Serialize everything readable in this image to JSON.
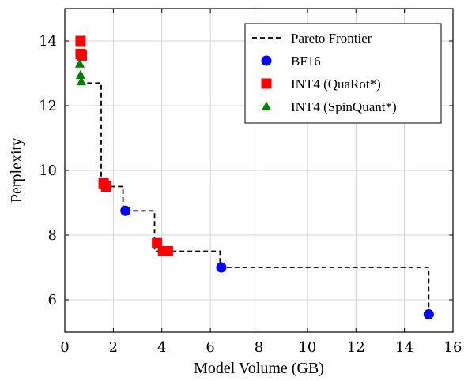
{
  "chart_data": {
    "type": "scatter",
    "xlabel": "Model Volume (GB)",
    "ylabel": "Perplexity",
    "xlim": [
      0,
      16
    ],
    "ylim": [
      5,
      15
    ],
    "xticks": [
      0,
      2,
      4,
      6,
      8,
      10,
      12,
      14,
      16
    ],
    "yticks": [
      6,
      8,
      10,
      12,
      14
    ],
    "grid": true,
    "legend_position": "top-right",
    "colors": {
      "frontier": "#000000",
      "bf16": "#0000ff",
      "int4_quarot": "#ff0000",
      "int4_spinquant": "#008000"
    },
    "frontier": {
      "name": "Pareto Frontier",
      "points": [
        [
          0.6,
          12.7
        ],
        [
          1.5,
          12.7
        ],
        [
          1.5,
          9.5
        ],
        [
          2.4,
          9.5
        ],
        [
          2.4,
          8.75
        ],
        [
          3.7,
          8.75
        ],
        [
          3.7,
          7.5
        ],
        [
          6.4,
          7.5
        ],
        [
          6.4,
          7.0
        ],
        [
          15.0,
          7.0
        ],
        [
          15.0,
          5.55
        ]
      ]
    },
    "series": [
      {
        "name": "BF16",
        "marker": "circle",
        "points": [
          [
            2.5,
            8.75
          ],
          [
            6.45,
            7.0
          ],
          [
            15.0,
            5.55
          ]
        ]
      },
      {
        "name": "INT4 (QuaRot*)",
        "marker": "square",
        "points": [
          [
            0.65,
            14.0
          ],
          [
            0.65,
            13.6
          ],
          [
            0.7,
            13.55
          ],
          [
            1.6,
            9.6
          ],
          [
            1.7,
            9.5
          ],
          [
            3.8,
            7.75
          ],
          [
            4.05,
            7.5
          ],
          [
            4.25,
            7.5
          ]
        ]
      },
      {
        "name": "INT4 (SpinQuant*)",
        "marker": "triangle",
        "points": [
          [
            0.62,
            13.3
          ],
          [
            0.65,
            12.95
          ],
          [
            0.68,
            12.75
          ]
        ]
      }
    ]
  }
}
